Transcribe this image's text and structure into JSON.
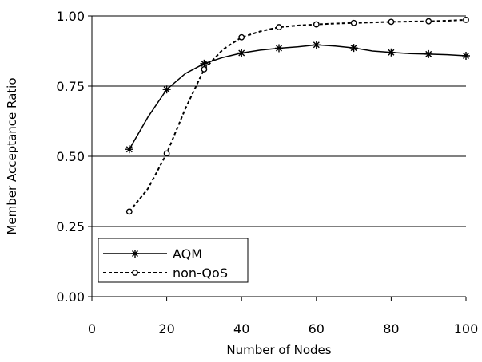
{
  "chart_data": {
    "type": "line",
    "xlabel": "Number of Nodes",
    "ylabel": "Member Acceptance Ratio",
    "xlim": [
      0,
      100
    ],
    "ylim": [
      0.0,
      1.0
    ],
    "x_ticks": [
      "0",
      "20",
      "40",
      "60",
      "80",
      "100"
    ],
    "y_ticks": [
      "0.00",
      "0.25",
      "0.50",
      "0.75",
      "1.00"
    ],
    "grid": "horizontal",
    "legend_position": "bottom-left",
    "series": [
      {
        "name": "AQM",
        "style": "solid",
        "marker": "asterisk",
        "points": [
          [
            10,
            0.525
          ],
          [
            20,
            0.738
          ],
          [
            30,
            0.83
          ],
          [
            40,
            0.868
          ],
          [
            50,
            0.885
          ],
          [
            60,
            0.897
          ],
          [
            70,
            0.886
          ],
          [
            80,
            0.87
          ],
          [
            90,
            0.864
          ],
          [
            100,
            0.858
          ]
        ],
        "curve": [
          [
            10,
            0.525
          ],
          [
            15,
            0.64
          ],
          [
            20,
            0.738
          ],
          [
            25,
            0.795
          ],
          [
            30,
            0.83
          ],
          [
            35,
            0.852
          ],
          [
            40,
            0.868
          ],
          [
            45,
            0.878
          ],
          [
            50,
            0.885
          ],
          [
            55,
            0.89
          ],
          [
            60,
            0.897
          ],
          [
            65,
            0.893
          ],
          [
            70,
            0.886
          ],
          [
            75,
            0.875
          ],
          [
            80,
            0.87
          ],
          [
            85,
            0.866
          ],
          [
            90,
            0.864
          ],
          [
            95,
            0.862
          ],
          [
            100,
            0.858
          ]
        ]
      },
      {
        "name": "non-QoS",
        "style": "dashed",
        "marker": "open-circle",
        "points": [
          [
            10,
            0.303
          ],
          [
            20,
            0.51
          ],
          [
            30,
            0.81
          ],
          [
            40,
            0.924
          ],
          [
            50,
            0.96
          ],
          [
            60,
            0.97
          ],
          [
            70,
            0.975
          ],
          [
            80,
            0.979
          ],
          [
            90,
            0.981
          ],
          [
            100,
            0.986
          ]
        ],
        "curve": [
          [
            10,
            0.303
          ],
          [
            15,
            0.385
          ],
          [
            20,
            0.51
          ],
          [
            25,
            0.67
          ],
          [
            30,
            0.81
          ],
          [
            35,
            0.88
          ],
          [
            40,
            0.924
          ],
          [
            45,
            0.945
          ],
          [
            50,
            0.96
          ],
          [
            55,
            0.966
          ],
          [
            60,
            0.97
          ],
          [
            65,
            0.973
          ],
          [
            70,
            0.975
          ],
          [
            75,
            0.977
          ],
          [
            80,
            0.979
          ],
          [
            85,
            0.98
          ],
          [
            90,
            0.981
          ],
          [
            95,
            0.983
          ],
          [
            100,
            0.986
          ]
        ]
      }
    ]
  }
}
